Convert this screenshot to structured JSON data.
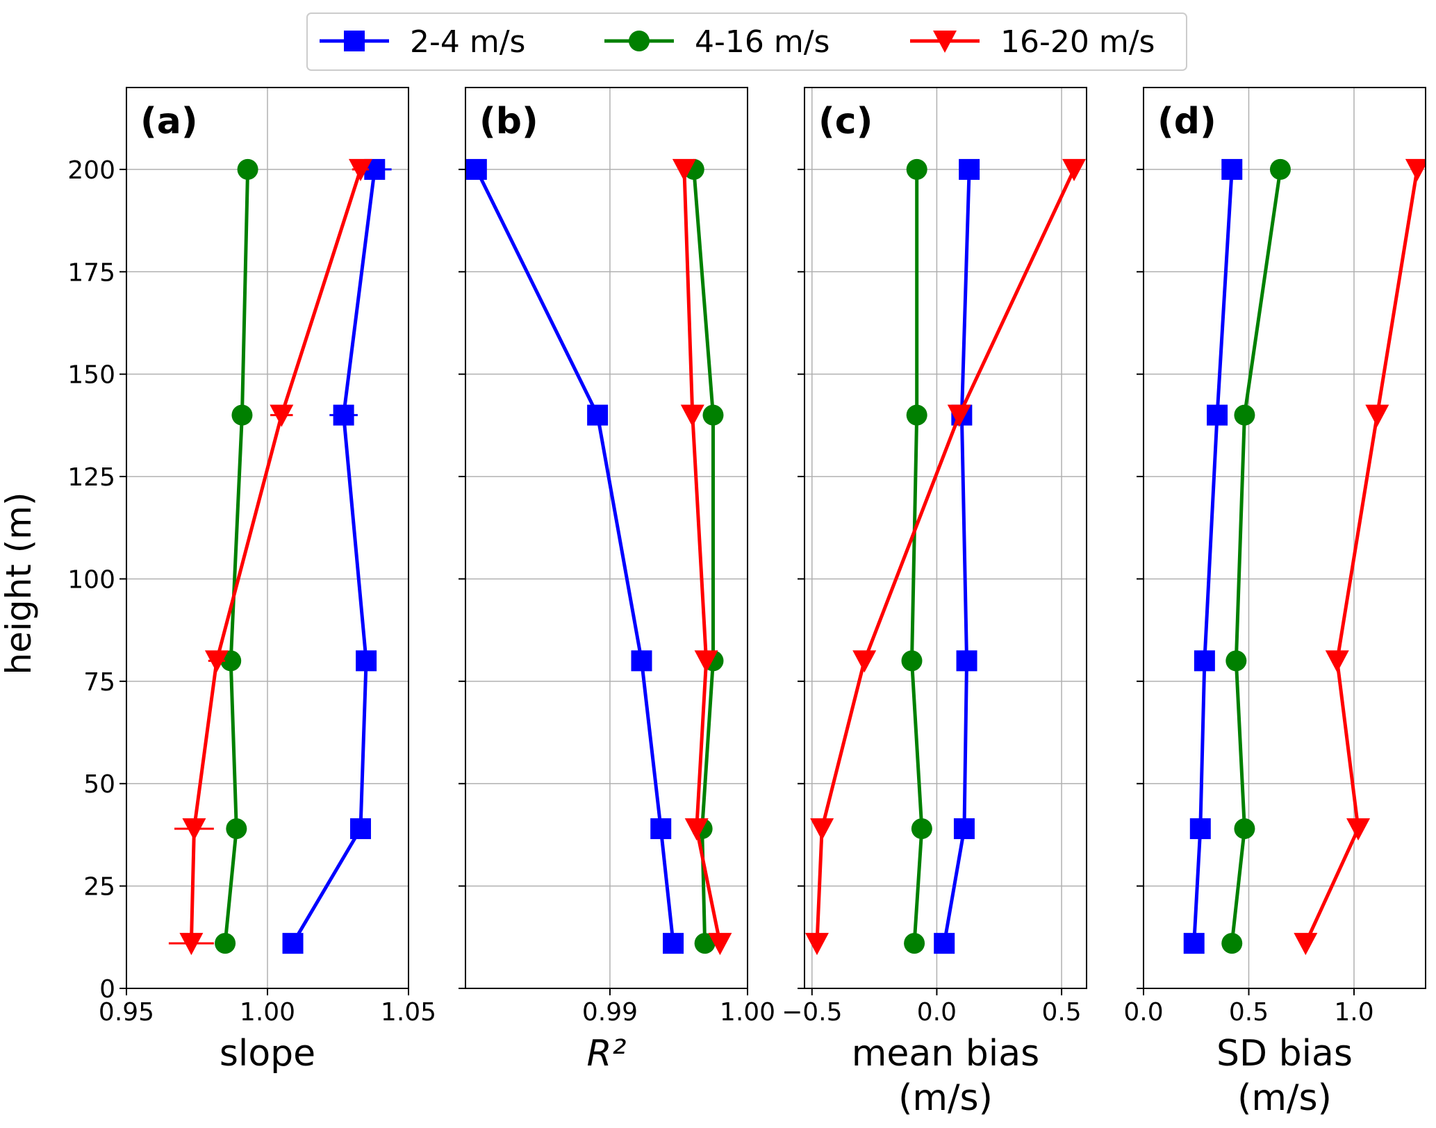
{
  "legend": {
    "position": "top-center",
    "entries": [
      {
        "label": "2-4 m/s",
        "color": "#0000ff",
        "marker": "square"
      },
      {
        "label": "4-16 m/s",
        "color": "#008000",
        "marker": "circle"
      },
      {
        "label": "16-20 m/s",
        "color": "#ff0000",
        "marker": "triangle-down"
      }
    ]
  },
  "y_axis": {
    "label": "height (m)",
    "ylim": [
      0,
      220
    ],
    "ticks": [
      0,
      25,
      50,
      75,
      100,
      125,
      150,
      175,
      200
    ]
  },
  "chart_data": [
    {
      "type": "line",
      "panel_label": "(a)",
      "xlabel": [
        "slope"
      ],
      "xlim": [
        0.95,
        1.05
      ],
      "xticks": [
        {
          "v": 0.95,
          "label": "0.95"
        },
        {
          "v": 1.0,
          "label": "1.00"
        },
        {
          "v": 1.05,
          "label": "1.05"
        }
      ],
      "grid": true,
      "series": [
        {
          "name": "2-4 m/s",
          "color": "#0000ff",
          "marker": "square",
          "x": [
            1.009,
            1.033,
            1.035,
            1.027,
            1.038
          ],
          "y": [
            11,
            39,
            80,
            140,
            200
          ],
          "xerr": [
            0,
            0,
            0.003,
            0.005,
            0.006
          ]
        },
        {
          "name": "4-16 m/s",
          "color": "#008000",
          "marker": "circle",
          "x": [
            0.985,
            0.989,
            0.987,
            0.991,
            0.993
          ],
          "y": [
            11,
            39,
            80,
            140,
            200
          ]
        },
        {
          "name": "16-20 m/s",
          "color": "#ff0000",
          "marker": "triangle-down",
          "x": [
            0.973,
            0.974,
            0.982,
            1.005,
            1.033
          ],
          "y": [
            11,
            39,
            80,
            140,
            200
          ],
          "xerr": [
            0.008,
            0.007,
            0.003,
            0.004,
            0.003
          ]
        }
      ]
    },
    {
      "type": "line",
      "panel_label": "(b)",
      "xlabel": [
        "R²"
      ],
      "xlabel_italic": true,
      "xlim": [
        0.9795,
        1.0
      ],
      "xticks": [
        {
          "v": 0.99,
          "label": "0.99"
        },
        {
          "v": 1.0,
          "label": "1.00"
        }
      ],
      "grid": true,
      "series": [
        {
          "name": "2-4 m/s",
          "color": "#0000ff",
          "marker": "square",
          "x": [
            0.9946,
            0.9937,
            0.9923,
            0.9891,
            0.9803
          ],
          "y": [
            11,
            39,
            80,
            140,
            200
          ]
        },
        {
          "name": "4-16 m/s",
          "color": "#008000",
          "marker": "circle",
          "x": [
            0.9969,
            0.9967,
            0.9975,
            0.9975,
            0.9961
          ],
          "y": [
            11,
            39,
            80,
            140,
            200
          ]
        },
        {
          "name": "16-20 m/s",
          "color": "#ff0000",
          "marker": "triangle-down",
          "x": [
            0.998,
            0.9963,
            0.997,
            0.996,
            0.9954
          ],
          "y": [
            11,
            39,
            80,
            140,
            200
          ]
        }
      ]
    },
    {
      "type": "line",
      "panel_label": "(c)",
      "xlabel": [
        "mean bias",
        "(m/s)"
      ],
      "xlim": [
        -0.53,
        0.6
      ],
      "xticks": [
        {
          "v": -0.5,
          "label": "−0.5"
        },
        {
          "v": 0.0,
          "label": "0.0"
        },
        {
          "v": 0.5,
          "label": "0.5"
        }
      ],
      "grid": true,
      "series": [
        {
          "name": "2-4 m/s",
          "color": "#0000ff",
          "marker": "square",
          "x": [
            0.03,
            0.11,
            0.12,
            0.1,
            0.13
          ],
          "y": [
            11,
            39,
            80,
            140,
            200
          ]
        },
        {
          "name": "4-16 m/s",
          "color": "#008000",
          "marker": "circle",
          "x": [
            -0.09,
            -0.06,
            -0.1,
            -0.08,
            -0.08
          ],
          "y": [
            11,
            39,
            80,
            140,
            200
          ]
        },
        {
          "name": "16-20 m/s",
          "color": "#ff0000",
          "marker": "triangle-down",
          "x": [
            -0.48,
            -0.46,
            -0.29,
            0.09,
            0.55
          ],
          "y": [
            11,
            39,
            80,
            140,
            200
          ]
        }
      ]
    },
    {
      "type": "line",
      "panel_label": "(d)",
      "xlabel": [
        "SD bias",
        "(m/s)"
      ],
      "xlim": [
        0.0,
        1.34
      ],
      "xticks": [
        {
          "v": 0.0,
          "label": "0.0"
        },
        {
          "v": 0.5,
          "label": "0.5"
        },
        {
          "v": 1.0,
          "label": "1.0"
        }
      ],
      "grid": true,
      "series": [
        {
          "name": "2-4 m/s",
          "color": "#0000ff",
          "marker": "square",
          "x": [
            0.24,
            0.27,
            0.29,
            0.35,
            0.42
          ],
          "y": [
            11,
            39,
            80,
            140,
            200
          ]
        },
        {
          "name": "4-16 m/s",
          "color": "#008000",
          "marker": "circle",
          "x": [
            0.42,
            0.48,
            0.44,
            0.48,
            0.65
          ],
          "y": [
            11,
            39,
            80,
            140,
            200
          ]
        },
        {
          "name": "16-20 m/s",
          "color": "#ff0000",
          "marker": "triangle-down",
          "x": [
            0.77,
            1.02,
            0.92,
            1.11,
            1.3
          ],
          "y": [
            11,
            39,
            80,
            140,
            200
          ]
        }
      ]
    }
  ]
}
